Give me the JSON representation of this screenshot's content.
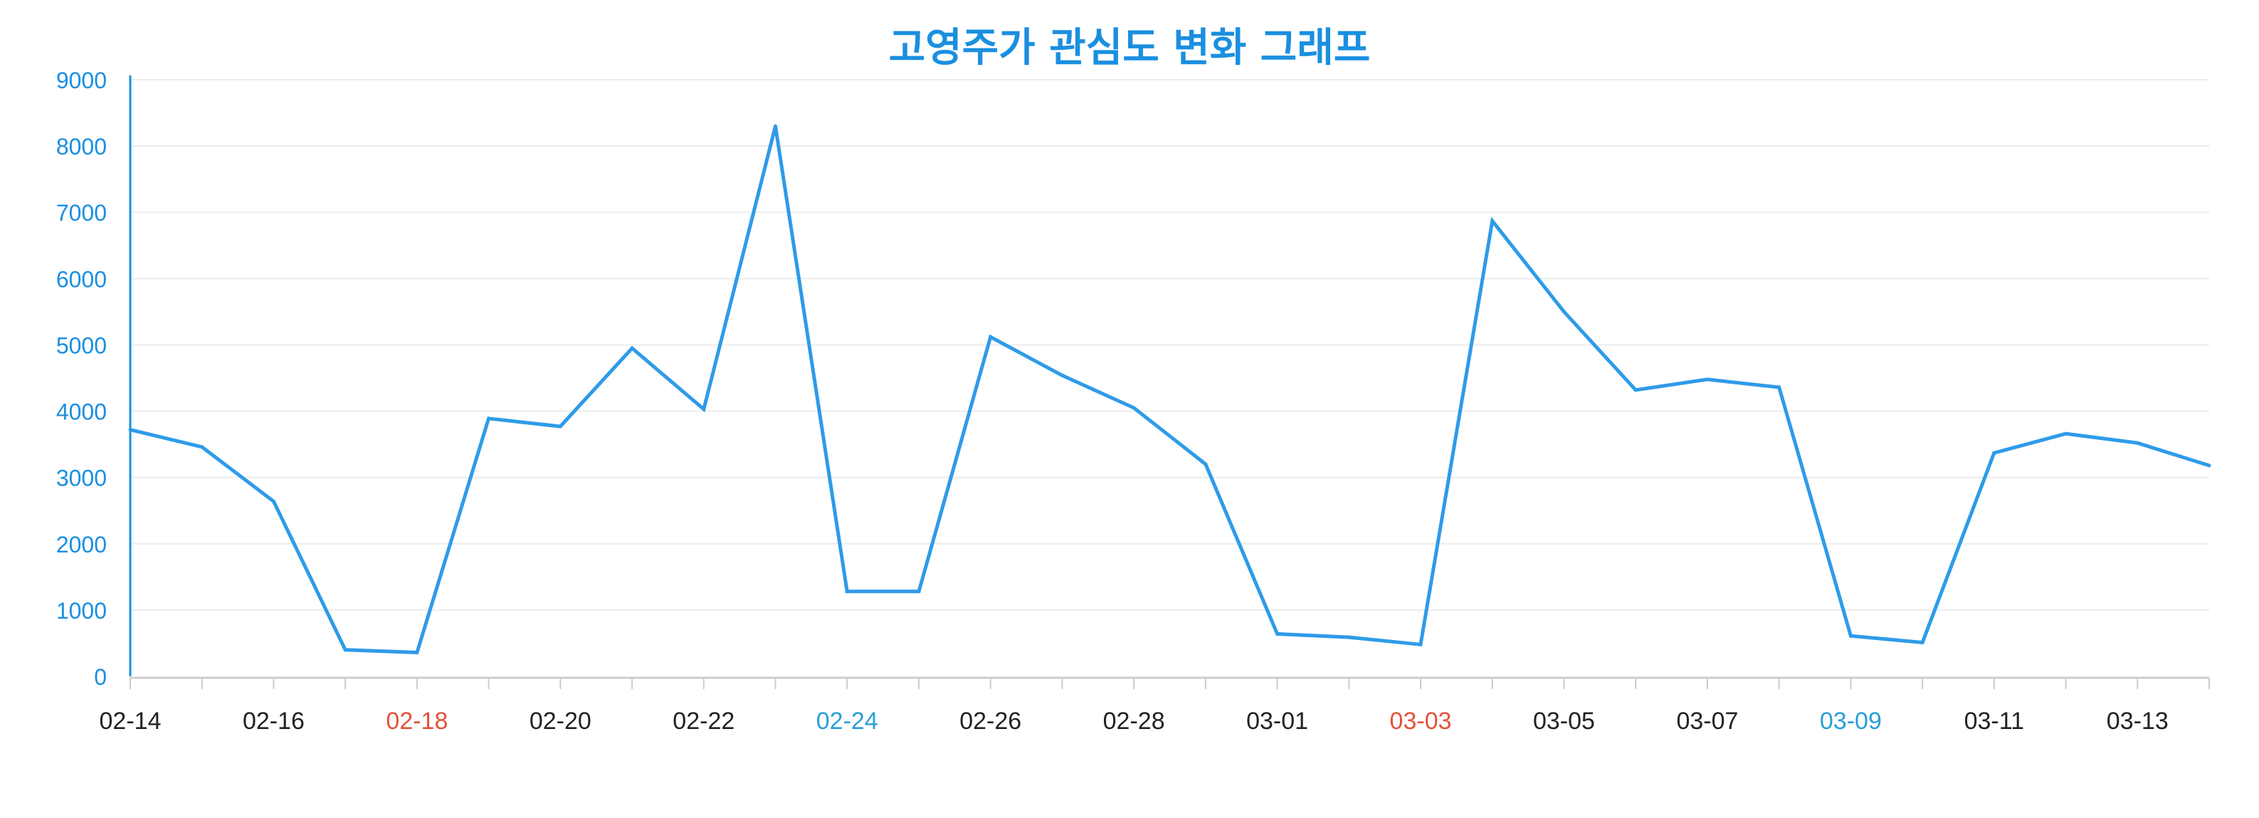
{
  "chart_data": {
    "type": "line",
    "title": "고영주가 관심도 변화 그래프",
    "xlabel": "",
    "ylabel": "",
    "ylim": [
      0,
      9000
    ],
    "yticks": [
      0,
      1000,
      2000,
      3000,
      4000,
      5000,
      6000,
      7000,
      8000,
      9000
    ],
    "x": [
      "02-14",
      "02-15",
      "02-16",
      "02-17",
      "02-18",
      "02-19",
      "02-20",
      "02-21",
      "02-22",
      "02-23",
      "02-24",
      "02-25",
      "02-26",
      "02-27",
      "02-28",
      "02-29",
      "03-01",
      "03-02",
      "03-03",
      "03-04",
      "03-05",
      "03-06",
      "03-07",
      "03-08",
      "03-09",
      "03-10",
      "03-11",
      "03-12",
      "03-13",
      "03-14"
    ],
    "x_tick_labels": [
      {
        "label": "02-14",
        "color": "#222222"
      },
      {
        "label": "02-16",
        "color": "#222222"
      },
      {
        "label": "02-18",
        "color": "#e2533a"
      },
      {
        "label": "02-20",
        "color": "#222222"
      },
      {
        "label": "02-22",
        "color": "#222222"
      },
      {
        "label": "02-24",
        "color": "#2a9fd6"
      },
      {
        "label": "02-26",
        "color": "#222222"
      },
      {
        "label": "02-28",
        "color": "#222222"
      },
      {
        "label": "03-01",
        "color": "#222222"
      },
      {
        "label": "03-03",
        "color": "#e2533a"
      },
      {
        "label": "03-05",
        "color": "#222222"
      },
      {
        "label": "03-07",
        "color": "#222222"
      },
      {
        "label": "03-09",
        "color": "#2a9fd6"
      },
      {
        "label": "03-11",
        "color": "#222222"
      },
      {
        "label": "03-13",
        "color": "#222222"
      }
    ],
    "series": [
      {
        "values": [
          3720,
          3460,
          2640,
          400,
          360,
          3890,
          3770,
          4950,
          4030,
          8300,
          1280,
          1280,
          5120,
          4540,
          4050,
          3200,
          640,
          590,
          480,
          6870,
          5500,
          4320,
          4480,
          4360,
          610,
          510,
          3370,
          3660,
          3520,
          3180
        ],
        "color": "#2e9be8"
      }
    ],
    "grid": true,
    "legend": "none",
    "colors": {
      "title": "#1a8fe0",
      "yaxis": "#1a8fe0",
      "grid": "#ececec",
      "xaxis": "#cccccc"
    }
  }
}
